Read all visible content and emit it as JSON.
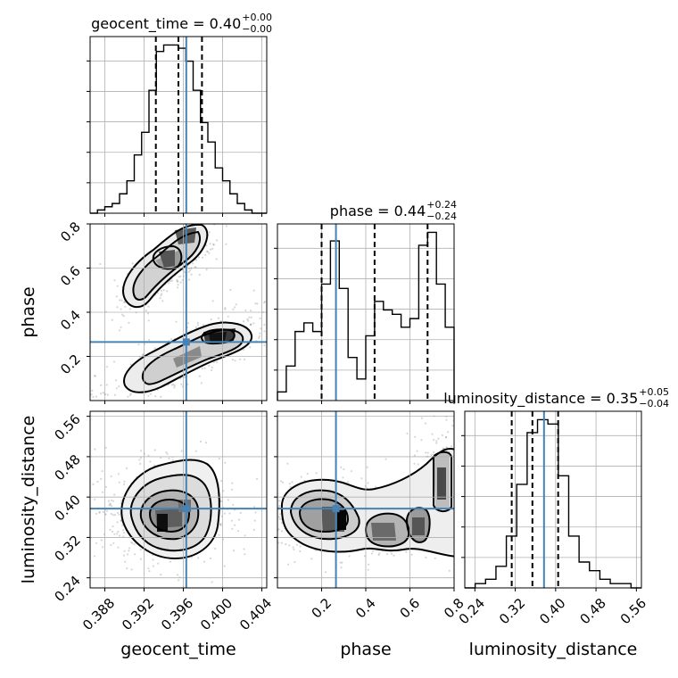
{
  "chart_data": {
    "type": "corner",
    "parameters": [
      {
        "name": "geocent_time",
        "xlabel": "geocent_time",
        "title": {
          "prefix": "geocent_time = ",
          "median": "0.40",
          "plus": "+0.00",
          "minus": "−0.00"
        },
        "range": [
          0.3865,
          0.4045
        ],
        "ticks": [
          "0.388",
          "0.392",
          "0.396",
          "0.400",
          "0.404"
        ],
        "tick_values": [
          0.388,
          0.392,
          0.396,
          0.4,
          0.404
        ],
        "truth": 0.3963,
        "quantiles": [
          0.3932,
          0.3955,
          0.3979
        ],
        "hist_range": [
          0.3865,
          0.4045
        ],
        "hist": [
          0,
          1,
          2,
          3,
          6,
          10,
          18,
          25,
          38,
          50,
          52,
          52,
          51,
          47,
          38,
          28,
          22,
          14,
          10,
          6,
          3,
          1,
          0,
          0
        ]
      },
      {
        "name": "phase",
        "xlabel": "phase",
        "ylabel": "phase",
        "title": {
          "prefix": "phase = ",
          "median": "0.44",
          "plus": "+0.24",
          "minus": "−0.24"
        },
        "range": [
          0.0,
          0.8
        ],
        "ticks": [
          "0.2",
          "0.4",
          "0.6",
          "0.8"
        ],
        "tick_values": [
          0.2,
          0.4,
          0.6,
          0.8
        ],
        "truth": 0.265,
        "quantiles": [
          0.2,
          0.44,
          0.68
        ],
        "hist_range": [
          0.0,
          0.8
        ],
        "hist": [
          2,
          8,
          16,
          18,
          16,
          27,
          37,
          26,
          10,
          5,
          15,
          23,
          21,
          20,
          17,
          19,
          36,
          39,
          27,
          17
        ]
      },
      {
        "name": "luminosity_distance",
        "xlabel": "luminosity_distance",
        "ylabel": "luminosity_distance",
        "title": {
          "prefix": "luminosity_distance = ",
          "median": "0.35",
          "plus": "+0.05",
          "minus": "−0.04"
        },
        "range": [
          0.22,
          0.57
        ],
        "ticks": [
          "0.24",
          "0.32",
          "0.40",
          "0.48",
          "0.56"
        ],
        "tick_values": [
          0.24,
          0.32,
          0.4,
          0.48,
          0.56
        ],
        "truth": 0.377,
        "quantiles": [
          0.313,
          0.354,
          0.405
        ],
        "hist_range": [
          0.22,
          0.57
        ],
        "hist": [
          0,
          1,
          2,
          5,
          12,
          24,
          36,
          39,
          38,
          26,
          12,
          6,
          4,
          2,
          1,
          1,
          0
        ]
      }
    ],
    "colors": {
      "truth": "#4682b4",
      "hist": "#000000",
      "quantile": "#000000",
      "grid": "#b0b0b0"
    },
    "grid": true,
    "yticks_1d": false
  }
}
